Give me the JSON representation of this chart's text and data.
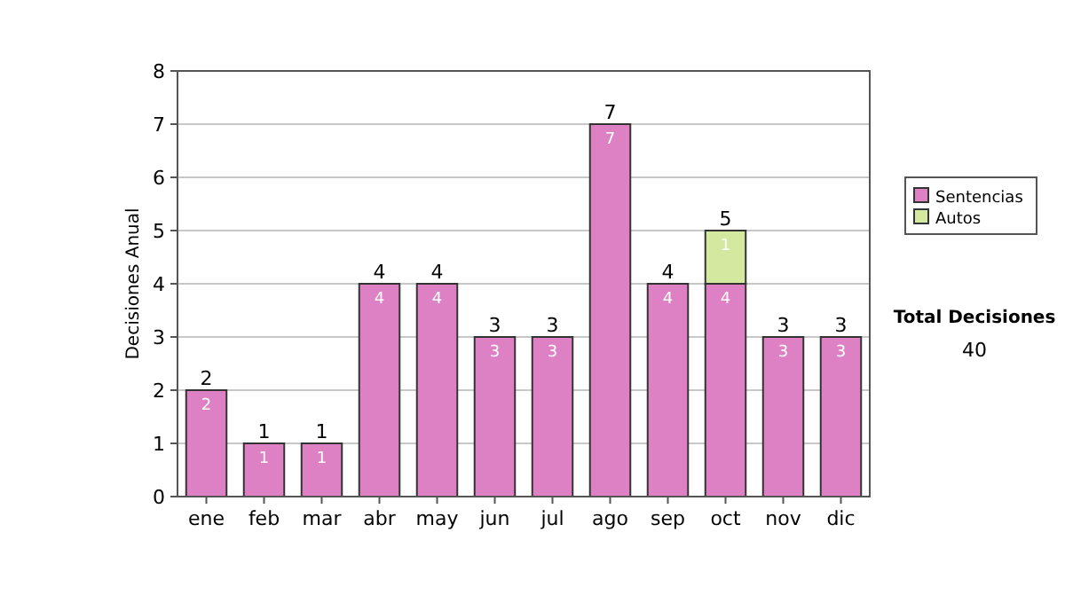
{
  "chart_data": {
    "type": "bar",
    "stacked": true,
    "ylabel": "Decisiones Anual",
    "categories": [
      "ene",
      "feb",
      "mar",
      "abr",
      "may",
      "jun",
      "jul",
      "ago",
      "sep",
      "oct",
      "nov",
      "dic"
    ],
    "series": [
      {
        "name": "Sentencias",
        "color": "#dd80c4",
        "values": [
          2,
          1,
          1,
          4,
          4,
          3,
          3,
          7,
          4,
          4,
          3,
          3
        ],
        "value_labels": [
          "2",
          "1",
          "1",
          "4",
          "4",
          "3",
          "3",
          "7",
          "4",
          "4",
          "3",
          "3"
        ]
      },
      {
        "name": "Autos",
        "color": "#d4e8a0",
        "values": [
          0,
          0,
          0,
          0,
          0,
          0,
          0,
          0,
          0,
          1,
          0,
          0
        ],
        "value_labels": [
          null,
          null,
          null,
          null,
          null,
          null,
          null,
          null,
          null,
          "1",
          null,
          null
        ]
      }
    ],
    "totals": [
      "2",
      "1",
      "1",
      "4",
      "4",
      "3",
      "3",
      "7",
      "4",
      "5",
      "3",
      "3"
    ],
    "ylim": [
      0,
      8
    ],
    "yticks": [
      0,
      1,
      2,
      3,
      4,
      5,
      6,
      7,
      8
    ],
    "grid": "y",
    "legend": "right",
    "annotations": [
      "Total Decisiones",
      "40"
    ]
  }
}
